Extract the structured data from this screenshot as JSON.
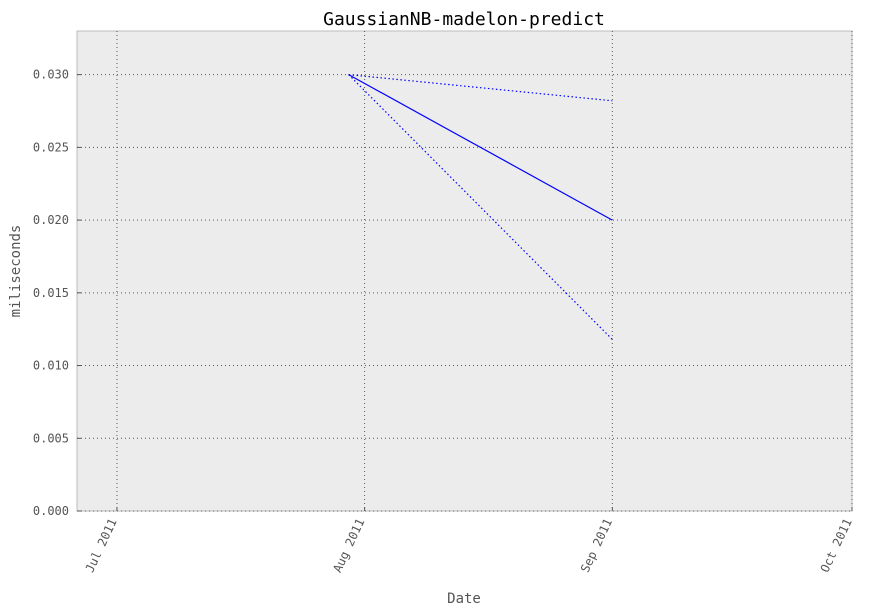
{
  "chart_data": {
    "type": "line",
    "title": "GaussianNB-madelon-predict",
    "xlabel": "Date",
    "ylabel": "miliseconds",
    "x_ticks": [
      "Jul 2011",
      "Aug 2011",
      "Sep 2011",
      "Oct 2011"
    ],
    "xlim": [
      "2011-06-26",
      "2011-10-01"
    ],
    "ylim": [
      0,
      0.033
    ],
    "y_ticks": [
      "0.000",
      "0.005",
      "0.010",
      "0.015",
      "0.020",
      "0.025",
      "0.030"
    ],
    "grid": true,
    "series": [
      {
        "style": "solid",
        "color": "#0000ff",
        "x": [
          "2011-07-30",
          "2011-09-01"
        ],
        "y": [
          0.03,
          0.02
        ]
      },
      {
        "style": "dotted",
        "color": "#0000ff",
        "x": [
          "2011-07-30",
          "2011-09-01"
        ],
        "y": [
          0.03,
          0.0282
        ]
      },
      {
        "style": "dotted",
        "color": "#0000ff",
        "x": [
          "2011-07-30",
          "2011-09-01"
        ],
        "y": [
          0.03,
          0.0118
        ]
      }
    ]
  }
}
